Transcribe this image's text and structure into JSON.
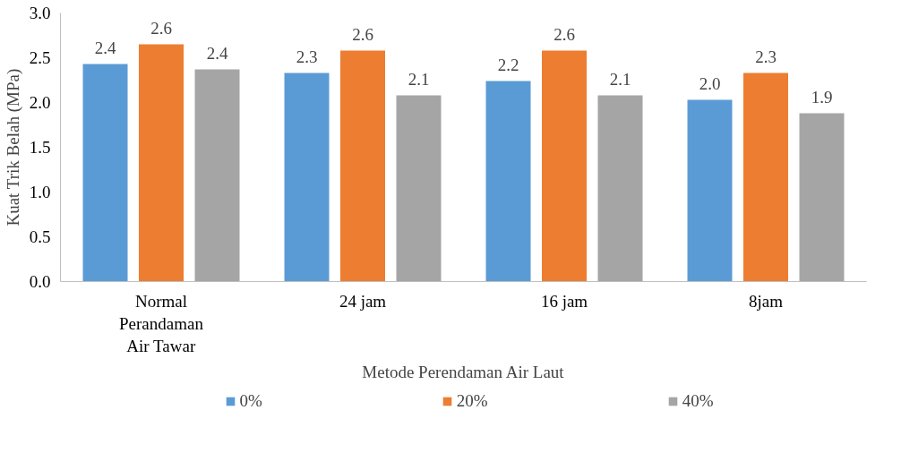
{
  "chart_data": {
    "type": "bar",
    "xlabel": "Metode Perendaman Air Laut",
    "ylabel": "Kuat Trik Belah (MPa)",
    "categories": [
      "Normal\nPerandaman\nAir Tawar",
      "24 jam",
      "16 jam",
      "8jam"
    ],
    "series": [
      {
        "name": "0%",
        "color": "#5b9bd5",
        "values": [
          2.43,
          2.33,
          2.24,
          2.03
        ],
        "value_labels": [
          "2.4",
          "2.3",
          "2.2",
          "2.0"
        ]
      },
      {
        "name": "20%",
        "color": "#ed7d31",
        "values": [
          2.65,
          2.58,
          2.58,
          2.33
        ],
        "value_labels": [
          "2.6",
          "2.6",
          "2.6",
          "2.3"
        ]
      },
      {
        "name": "40%",
        "color": "#a5a5a5",
        "values": [
          2.37,
          2.08,
          2.08,
          1.88
        ],
        "value_labels": [
          "2.4",
          "2.1",
          "2.1",
          "1.9"
        ]
      }
    ],
    "ylim": [
      0,
      3
    ],
    "yticks": [
      {
        "value": 0,
        "label": "0.0"
      },
      {
        "value": 0.5,
        "label": "0.5"
      },
      {
        "value": 1,
        "label": "1.0"
      },
      {
        "value": 1.5,
        "label": "1.5"
      },
      {
        "value": 2,
        "label": "2.0"
      },
      {
        "value": 2.5,
        "label": "2.5"
      },
      {
        "value": 3,
        "label": "3.0"
      }
    ],
    "grid": false,
    "legend": "bottom"
  }
}
